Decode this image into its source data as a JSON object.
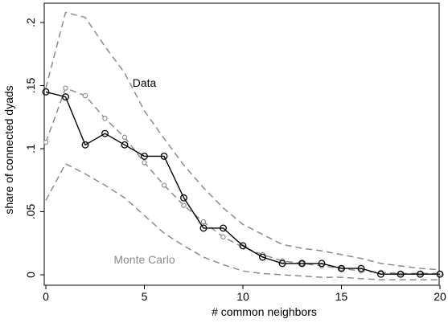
{
  "chart_data": {
    "type": "line",
    "xlabel": "# common neighbors",
    "ylabel": "share of connected dyads",
    "xlim": [
      0,
      20
    ],
    "ylim": [
      0,
      0.21
    ],
    "x_ticks": [
      0,
      5,
      10,
      15,
      20
    ],
    "y_ticks": [
      0,
      0.05,
      0.1,
      0.15,
      0.2
    ],
    "x_tick_labels": [
      "0",
      "5",
      "10",
      "15",
      "20"
    ],
    "y_tick_labels": [
      "0",
      ".05",
      ".1",
      ".15",
      ".2"
    ],
    "grid": false,
    "annotations": [
      {
        "text": "Data",
        "x": 5,
        "y": 0.149
      },
      {
        "text": "Monte Carlo",
        "x": 5,
        "y": 0.009
      }
    ],
    "x": [
      0,
      1,
      2,
      3,
      4,
      5,
      6,
      7,
      8,
      9,
      10,
      11,
      12,
      13,
      14,
      15,
      16,
      17,
      18,
      19,
      20
    ],
    "series": [
      {
        "style": "solid-circles",
        "color": "#000000",
        "values": [
          0.145,
          0.141,
          0.103,
          0.112,
          0.103,
          0.094,
          0.094,
          0.061,
          0.037,
          0.037,
          0.023,
          0.014,
          0.009,
          0.009,
          0.009,
          0.005,
          0.005,
          0.0005,
          0.0005,
          0.0005,
          0.0005
        ]
      },
      {
        "style": "gray-dashed-markers",
        "color": "#8c8c8c",
        "values": [
          0.105,
          0.148,
          0.142,
          0.124,
          0.109,
          0.089,
          0.071,
          0.055,
          0.042,
          0.03,
          0.022,
          0.016,
          0.011,
          0.009,
          0.007,
          0.005,
          0.003,
          0.002,
          0.001,
          0.001,
          0.001
        ]
      },
      {
        "style": "dashed",
        "color": "#8c8c8c",
        "values": [
          0.148,
          0.208,
          0.204,
          0.181,
          0.16,
          0.13,
          0.108,
          0.087,
          0.069,
          0.053,
          0.04,
          0.032,
          0.024,
          0.021,
          0.019,
          0.016,
          0.013,
          0.009,
          0.007,
          0.005,
          0.004
        ]
      },
      {
        "style": "dashed",
        "color": "#8c8c8c",
        "values": [
          0.059,
          0.088,
          0.08,
          0.071,
          0.061,
          0.047,
          0.033,
          0.023,
          0.014,
          0.008,
          0.003,
          0.001,
          0.0,
          -0.001,
          -0.002,
          -0.002,
          -0.003,
          -0.004,
          -0.004,
          -0.004,
          -0.004
        ]
      }
    ]
  }
}
